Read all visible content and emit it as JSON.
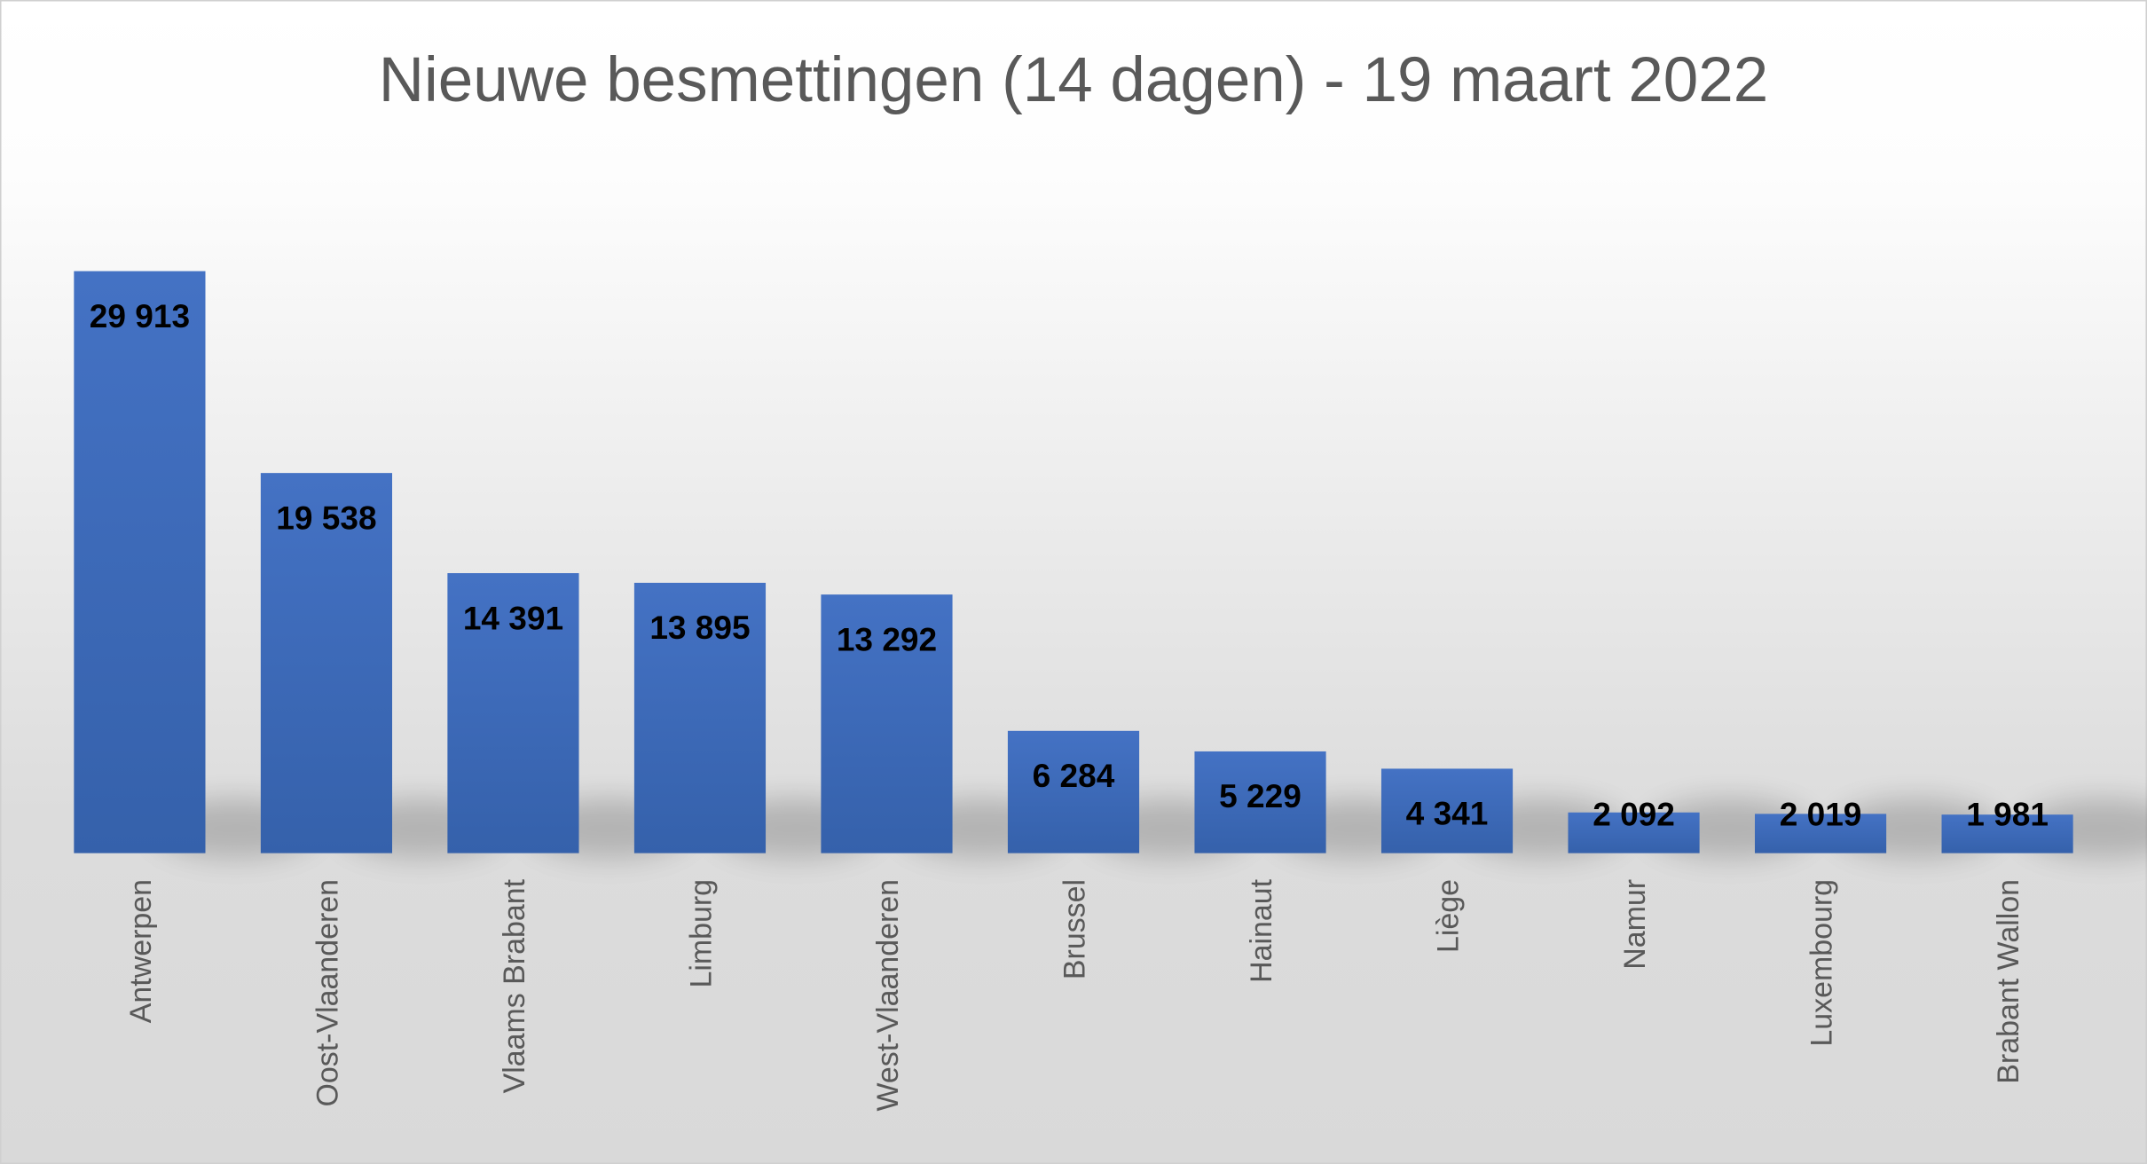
{
  "chart_data": {
    "type": "bar",
    "title": "Nieuwe besmettingen (14 dagen) - 19 maart 2022",
    "xlabel": "",
    "ylabel": "",
    "ylim": [
      0,
      31000
    ],
    "grid": false,
    "legend": "none",
    "categories": [
      "Antwerpen",
      "Oost-Vlaanderen",
      "Vlaams Brabant",
      "Limburg",
      "West-Vlaanderen",
      "Brussel",
      "Hainaut",
      "Liège",
      "Namur",
      "Luxembourg",
      "Brabant Wallon"
    ],
    "values": [
      29913,
      19538,
      14391,
      13895,
      13292,
      6284,
      5229,
      4341,
      2092,
      2019,
      1981
    ],
    "data_labels": [
      "29 913",
      "19 538",
      "14 391",
      "13 895",
      "13 292",
      "6 284",
      "5 229",
      "4 341",
      "2 092",
      "2 019",
      "1 981"
    ],
    "colors": {
      "bar_top": "#4472c4",
      "bar_bottom": "#3561ab",
      "title": "#595959",
      "axis_text": "#595959",
      "label": "#000000"
    }
  }
}
